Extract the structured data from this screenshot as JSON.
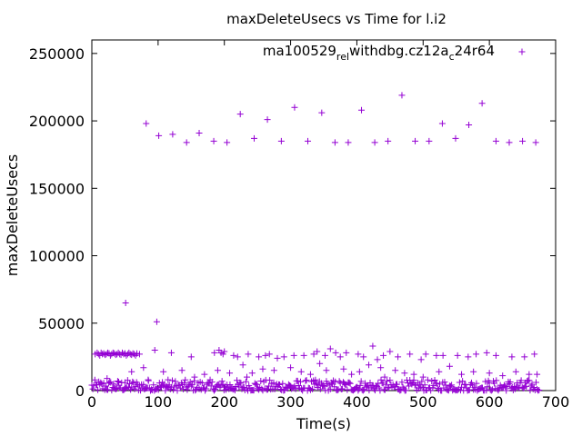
{
  "chart_data": {
    "type": "scatter",
    "title": "maxDeleteUsecs vs Time for l.i2",
    "xlabel": "Time(s)",
    "ylabel": "maxDeleteUsecs",
    "xlim": [
      0,
      700
    ],
    "ylim": [
      0,
      260000
    ],
    "x_ticks": [
      0,
      100,
      200,
      300,
      400,
      500,
      600,
      700
    ],
    "y_ticks": [
      0,
      50000,
      100000,
      150000,
      200000,
      250000
    ],
    "x_tick_labels": [
      "0",
      "100",
      "200",
      "300",
      "400",
      "500",
      "600",
      "700"
    ],
    "y_tick_labels": [
      "0",
      "50000",
      "100000",
      "150000",
      "200000",
      "250000"
    ],
    "grid": false,
    "legend_position": "top-right",
    "legend": {
      "main": "ma100529",
      "sub1": "rel",
      "mid1": "withdbg.cz12a",
      "sub2": "c",
      "end": "24r64"
    },
    "marker": "+",
    "color": "#9400d3",
    "series": [
      {
        "name": "ma100529_rel_withdbg.cz12a_c24r64",
        "points": [
          [
            82,
            198000
          ],
          [
            101,
            189000
          ],
          [
            122,
            190000
          ],
          [
            143,
            184000
          ],
          [
            162,
            191000
          ],
          [
            184,
            185000
          ],
          [
            204,
            184000
          ],
          [
            224,
            205000
          ],
          [
            245,
            187000
          ],
          [
            265,
            201000
          ],
          [
            286,
            185000
          ],
          [
            306,
            210000
          ],
          [
            326,
            185000
          ],
          [
            347,
            206000
          ],
          [
            367,
            184000
          ],
          [
            387,
            184000
          ],
          [
            407,
            208000
          ],
          [
            427,
            184000
          ],
          [
            447,
            185000
          ],
          [
            468,
            219000
          ],
          [
            488,
            185000
          ],
          [
            509,
            185000
          ],
          [
            529,
            198000
          ],
          [
            549,
            187000
          ],
          [
            569,
            197000
          ],
          [
            589,
            213000
          ],
          [
            610,
            185000
          ],
          [
            630,
            184000
          ],
          [
            650,
            185000
          ],
          [
            670,
            184000
          ],
          [
            51,
            65000
          ],
          [
            98,
            51000
          ],
          [
            78,
            17000
          ],
          [
            108,
            14000
          ],
          [
            5,
            27000
          ],
          [
            8,
            28000
          ],
          [
            10,
            27000
          ],
          [
            12,
            26000
          ],
          [
            14,
            28000
          ],
          [
            16,
            27000
          ],
          [
            18,
            27500
          ],
          [
            20,
            26500
          ],
          [
            22,
            27000
          ],
          [
            24,
            28000
          ],
          [
            26,
            27500
          ],
          [
            28,
            26000
          ],
          [
            30,
            27000
          ],
          [
            32,
            28000
          ],
          [
            34,
            27500
          ],
          [
            36,
            26500
          ],
          [
            38,
            27000
          ],
          [
            40,
            28000
          ],
          [
            42,
            27000
          ],
          [
            44,
            26500
          ],
          [
            46,
            28000
          ],
          [
            48,
            27000
          ],
          [
            50,
            27500
          ],
          [
            52,
            26000
          ],
          [
            54,
            27000
          ],
          [
            56,
            28000
          ],
          [
            58,
            27000
          ],
          [
            60,
            26500
          ],
          [
            62,
            27500
          ],
          [
            64,
            27000
          ],
          [
            66,
            26000
          ],
          [
            68,
            27500
          ],
          [
            72,
            27000
          ],
          [
            95,
            30000
          ],
          [
            120,
            28000
          ],
          [
            150,
            25000
          ],
          [
            185,
            28000
          ],
          [
            192,
            30000
          ],
          [
            195,
            28000
          ],
          [
            198,
            27000
          ],
          [
            200,
            29000
          ],
          [
            214,
            26000
          ],
          [
            220,
            25000
          ],
          [
            236,
            27000
          ],
          [
            252,
            25000
          ],
          [
            262,
            26000
          ],
          [
            268,
            27000
          ],
          [
            280,
            24000
          ],
          [
            290,
            25000
          ],
          [
            305,
            26000
          ],
          [
            320,
            26000
          ],
          [
            335,
            27000
          ],
          [
            340,
            29000
          ],
          [
            352,
            26000
          ],
          [
            360,
            31000
          ],
          [
            368,
            28000
          ],
          [
            375,
            25000
          ],
          [
            384,
            28000
          ],
          [
            402,
            27000
          ],
          [
            410,
            25000
          ],
          [
            424,
            33000
          ],
          [
            431,
            23000
          ],
          [
            440,
            26000
          ],
          [
            450,
            29000
          ],
          [
            462,
            25000
          ],
          [
            480,
            27000
          ],
          [
            497,
            23000
          ],
          [
            504,
            27000
          ],
          [
            520,
            26000
          ],
          [
            530,
            26000
          ],
          [
            552,
            26000
          ],
          [
            568,
            25000
          ],
          [
            580,
            27000
          ],
          [
            596,
            28000
          ],
          [
            610,
            26000
          ],
          [
            634,
            25000
          ],
          [
            653,
            25000
          ],
          [
            668,
            27000
          ],
          [
            23,
            9000
          ],
          [
            40,
            4000
          ],
          [
            50,
            6000
          ],
          [
            60,
            14000
          ],
          [
            85,
            8000
          ],
          [
            115,
            8000
          ],
          [
            136,
            15000
          ],
          [
            155,
            10000
          ],
          [
            170,
            12000
          ],
          [
            190,
            15000
          ],
          [
            208,
            13000
          ],
          [
            228,
            19000
          ],
          [
            234,
            10000
          ],
          [
            242,
            13000
          ],
          [
            258,
            16000
          ],
          [
            275,
            15000
          ],
          [
            300,
            17000
          ],
          [
            316,
            14000
          ],
          [
            330,
            12000
          ],
          [
            344,
            20000
          ],
          [
            354,
            15000
          ],
          [
            380,
            16000
          ],
          [
            392,
            12000
          ],
          [
            404,
            14000
          ],
          [
            418,
            19000
          ],
          [
            436,
            17000
          ],
          [
            442,
            10000
          ],
          [
            458,
            15000
          ],
          [
            472,
            13000
          ],
          [
            486,
            12000
          ],
          [
            500,
            10000
          ],
          [
            524,
            14000
          ],
          [
            540,
            18000
          ],
          [
            558,
            12000
          ],
          [
            576,
            14000
          ],
          [
            600,
            13000
          ],
          [
            620,
            11000
          ],
          [
            640,
            14000
          ],
          [
            660,
            12000
          ],
          [
            672,
            12000
          ]
        ]
      }
    ],
    "dense_band": {
      "x_start": 0,
      "x_end": 675,
      "y_min": 0,
      "y_max": 8000
    }
  }
}
